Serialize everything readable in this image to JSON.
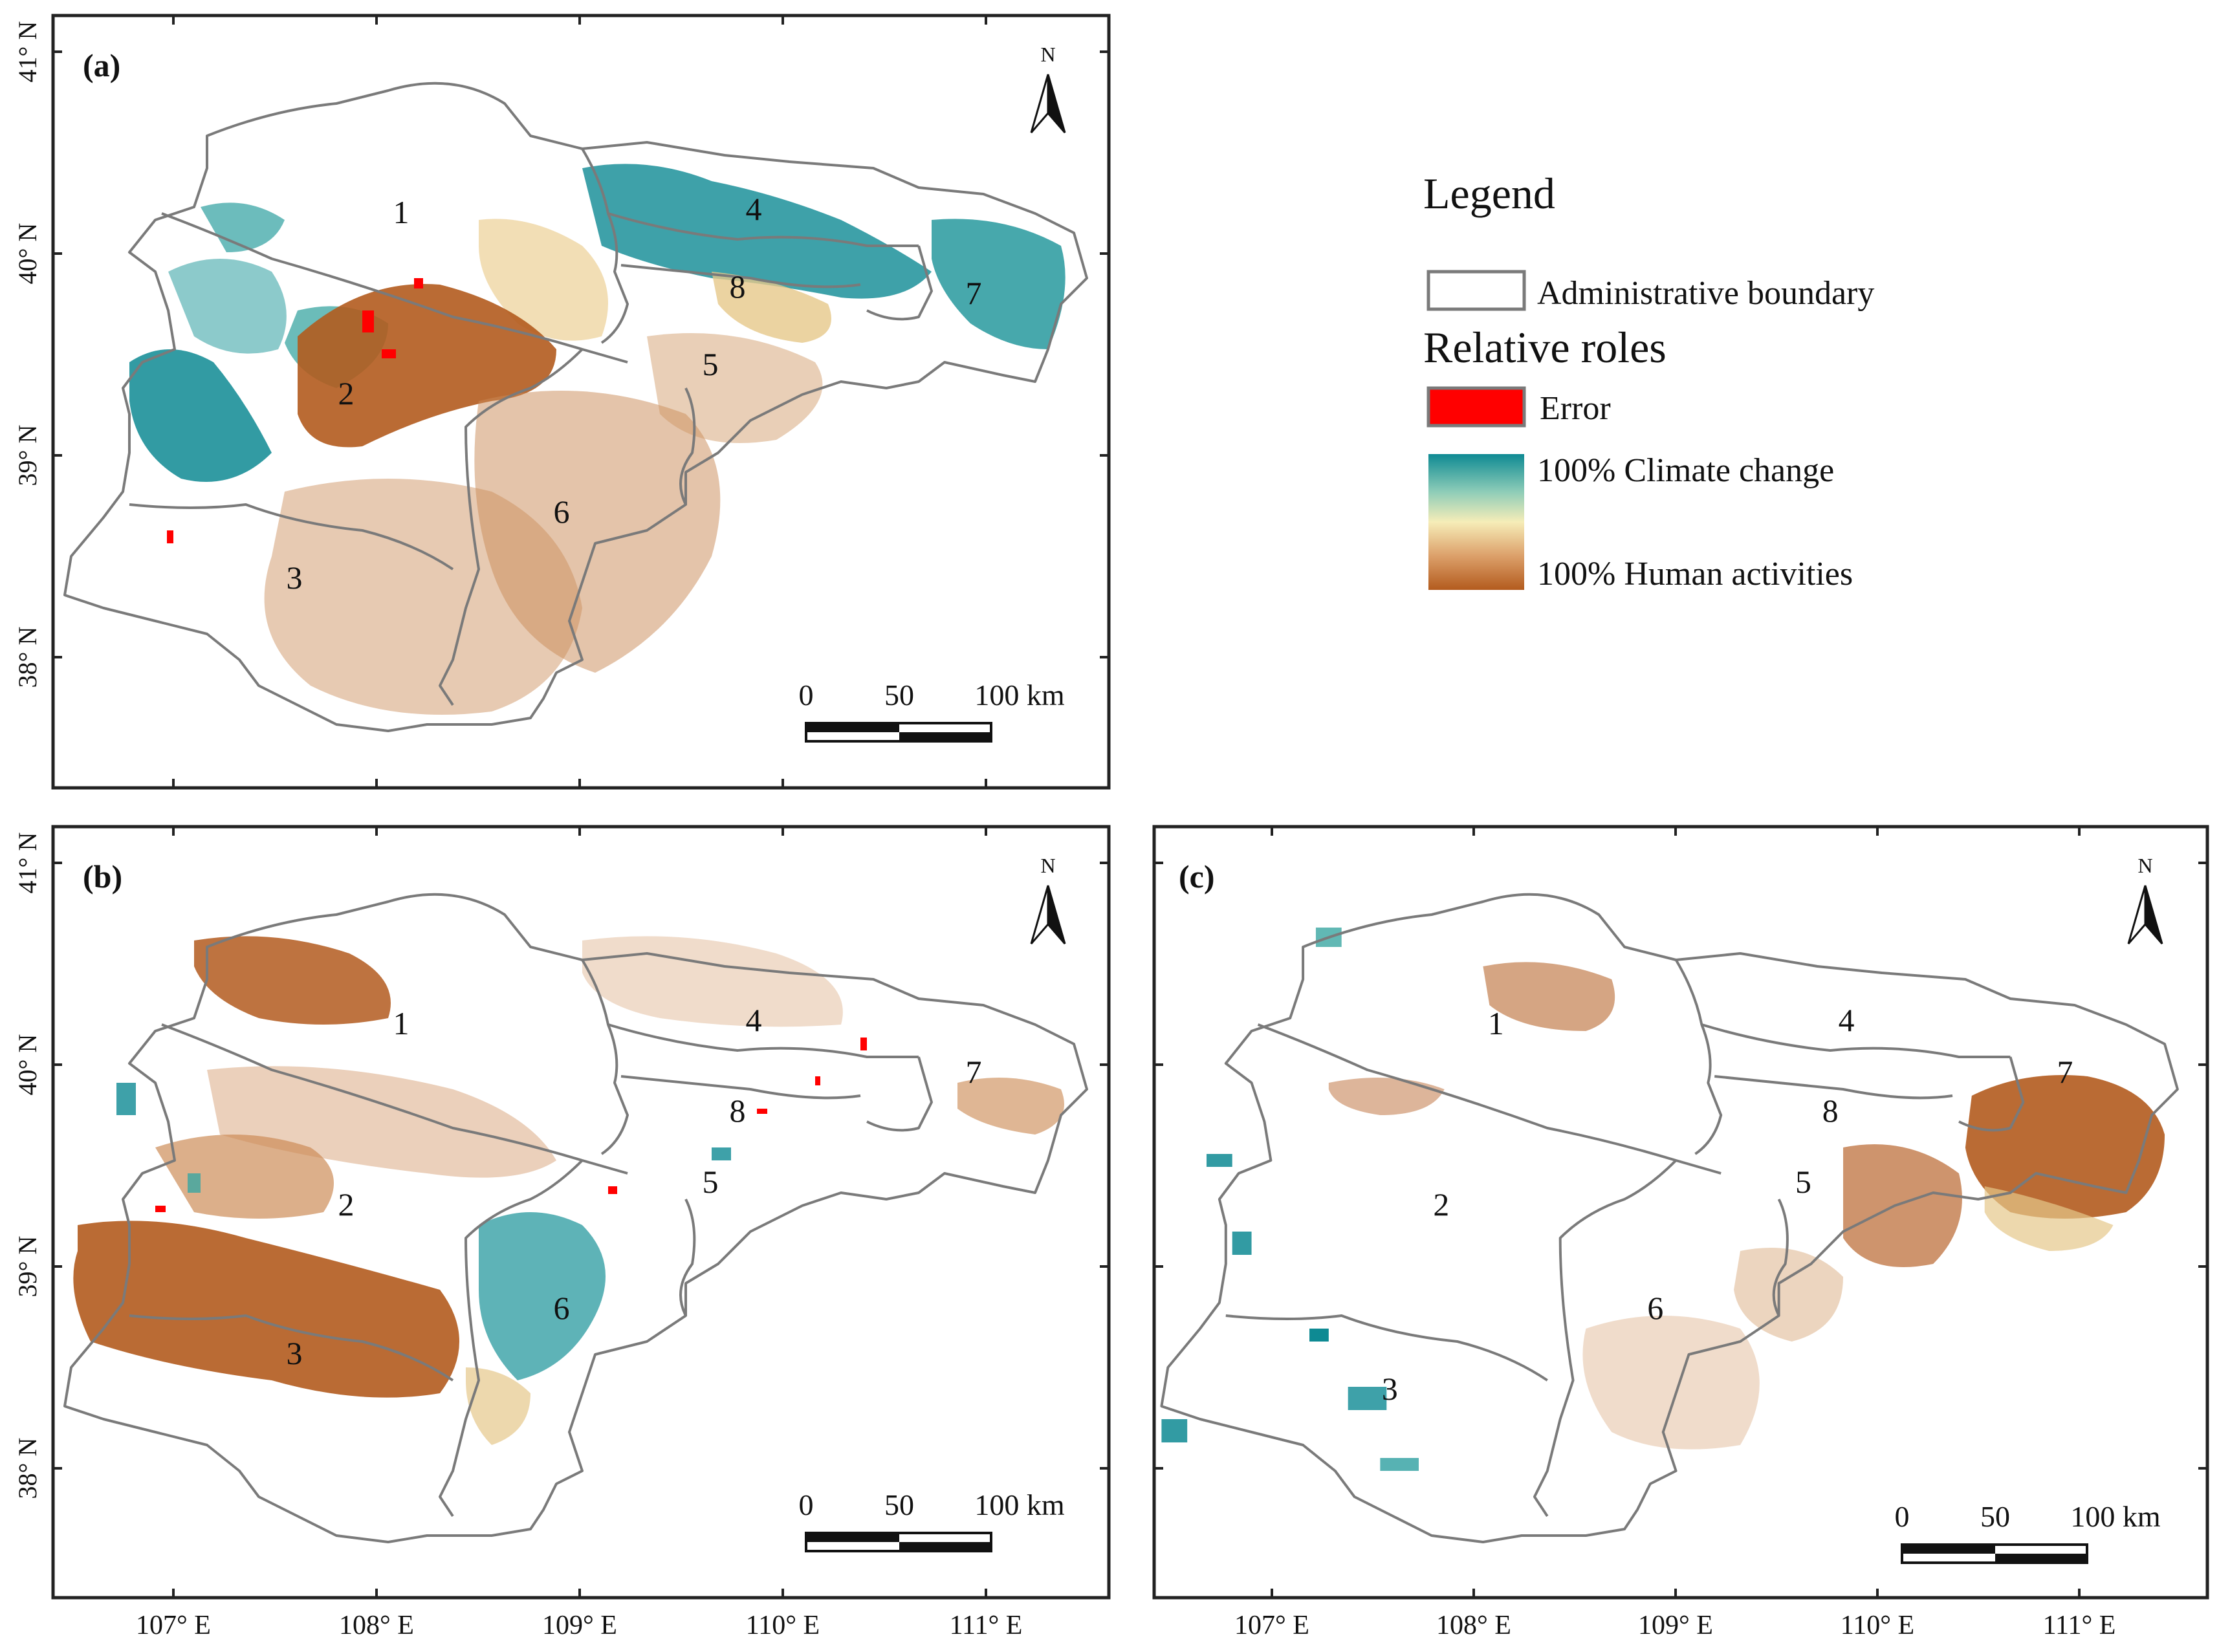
{
  "figure": {
    "description_panels": [
      "a",
      "b",
      "c"
    ]
  },
  "panels": {
    "a": {
      "label": "(a)"
    },
    "b": {
      "label": "(b)"
    },
    "c": {
      "label": "(c)"
    }
  },
  "region_labels": [
    "1",
    "2",
    "3",
    "4",
    "5",
    "6",
    "7",
    "8"
  ],
  "axes": {
    "lat_ticks": [
      "41° N",
      "40° N",
      "39° N",
      "38° N"
    ],
    "lon_ticks": [
      "107° E",
      "108° E",
      "109° E",
      "110° E",
      "111° E"
    ]
  },
  "north_arrow": {
    "label": "N"
  },
  "scale_bar": {
    "labels": [
      "0",
      "50",
      "100 km"
    ]
  },
  "legend": {
    "title": "Legend",
    "boundary_label": "Administrative boundary",
    "roles_title": "Relative roles",
    "error_label": "Error",
    "climate_label": "100% Climate change",
    "human_label": "100% Human activities"
  },
  "colors": {
    "boundary": "#7a7a7a",
    "error": "#ff0000",
    "climate": "#0e8a93",
    "mid": "#f6edb8",
    "human": "#b35b1e"
  }
}
